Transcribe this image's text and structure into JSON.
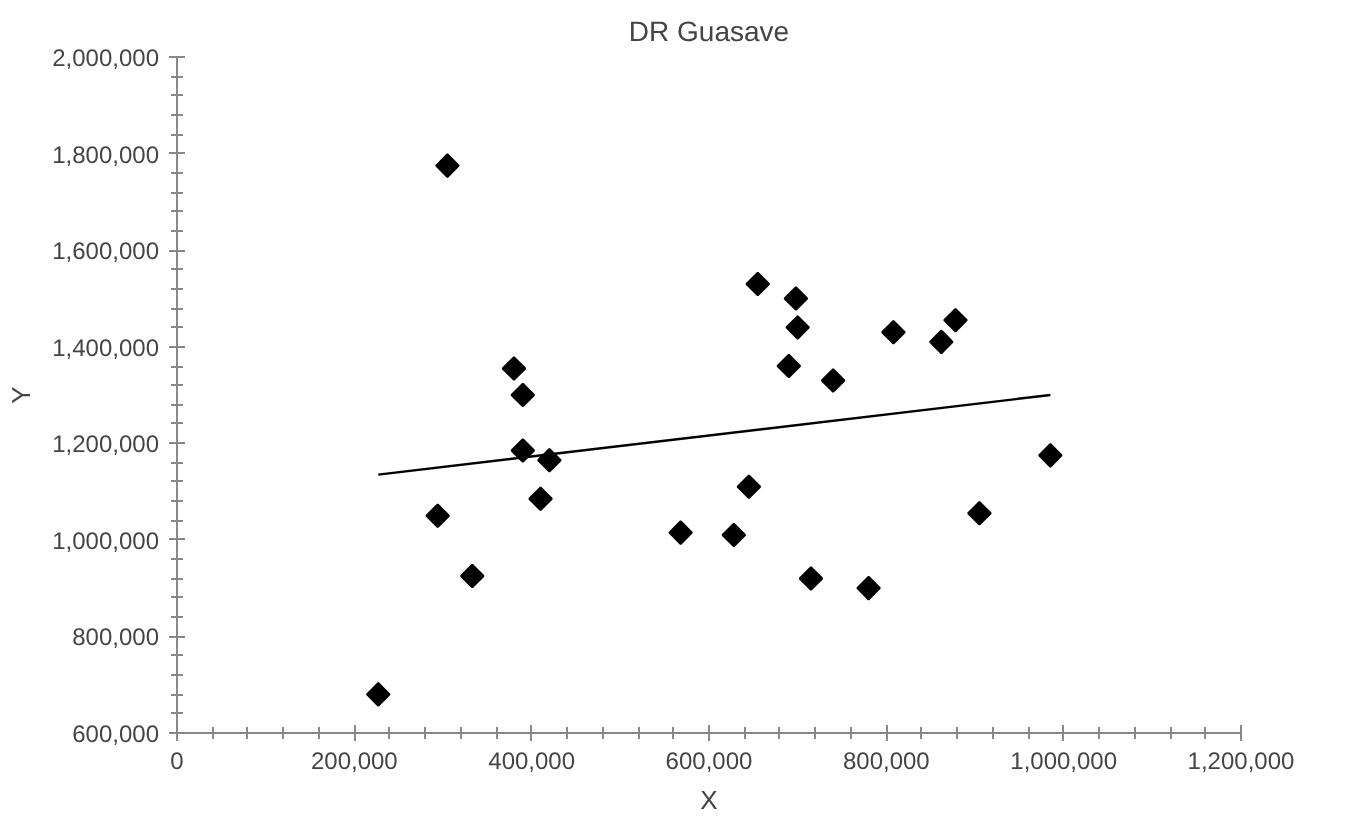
{
  "chart_data": {
    "type": "scatter",
    "title": "DR Guasave",
    "xlabel": "X",
    "ylabel": "Y",
    "marker": "diamond",
    "grid": false,
    "xlim": [
      0,
      1200000
    ],
    "ylim": [
      600000,
      2000000
    ],
    "xticks": [
      {
        "value": 0,
        "label": "0"
      },
      {
        "value": 200000,
        "label": "200,000"
      },
      {
        "value": 400000,
        "label": "400,000"
      },
      {
        "value": 600000,
        "label": "600,000"
      },
      {
        "value": 800000,
        "label": "800,000"
      },
      {
        "value": 1000000,
        "label": "1,000,000"
      },
      {
        "value": 1200000,
        "label": "1,200,000"
      }
    ],
    "yticks": [
      {
        "value": 600000,
        "label": "600,000"
      },
      {
        "value": 800000,
        "label": "800,000"
      },
      {
        "value": 1000000,
        "label": "1,000,000"
      },
      {
        "value": 1200000,
        "label": "1,200,000"
      },
      {
        "value": 1400000,
        "label": "1,400,000"
      },
      {
        "value": 1600000,
        "label": "1,600,000"
      },
      {
        "value": 1800000,
        "label": "1,800,000"
      },
      {
        "value": 2000000,
        "label": "2,000,000"
      }
    ],
    "series": [
      {
        "color": "#000000",
        "x": [
          227000,
          294000,
          305000,
          333000,
          380000,
          390000,
          390000,
          410000,
          420000,
          568000,
          628000,
          645000,
          655000,
          690000,
          698000,
          700000,
          715000,
          740000,
          780000,
          808000,
          862000,
          878000,
          905000,
          985000
        ],
        "values": [
          680000,
          1050000,
          1775000,
          925000,
          1355000,
          1300000,
          1185000,
          1085000,
          1165000,
          1015000,
          1010000,
          1110000,
          1530000,
          1360000,
          1500000,
          1440000,
          920000,
          1330000,
          900000,
          1430000,
          1410000,
          1455000,
          1055000,
          1175000
        ]
      },
      {
        "type": "line",
        "color": "#000000",
        "marker": "none",
        "line_style": "solid",
        "x": [
          227000,
          985000
        ],
        "values": [
          1135000,
          1300000
        ]
      }
    ]
  }
}
